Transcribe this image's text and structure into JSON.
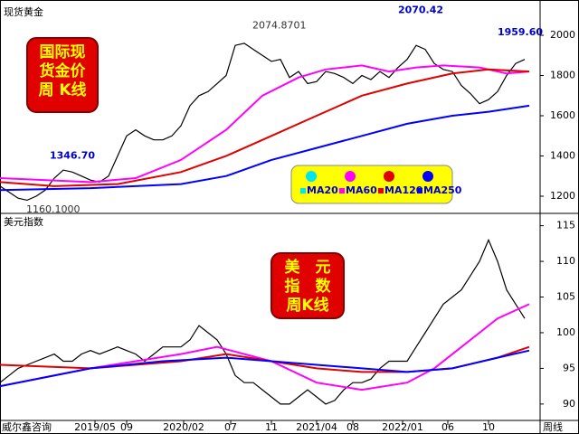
{
  "chart_data": [
    {
      "type": "line",
      "title": "现货黄金",
      "label_box": [
        "国际现",
        "货金价",
        "周 K线"
      ],
      "xlim": [
        0,
        59.7
      ],
      "ylim": [
        1119,
        2153
      ],
      "yticks": [
        1200,
        1400,
        1600,
        1800,
        2000
      ],
      "legend": [
        {
          "name": "MA20",
          "color": "#00e5ee"
        },
        {
          "name": "MA60",
          "color": "#ff00ff"
        },
        {
          "name": "MA120",
          "color": "#e00000"
        },
        {
          "name": "MA250",
          "color": "#0000ff"
        }
      ],
      "annotations": [
        {
          "text": "2074.8701",
          "x": 26.5,
          "y": 2074.87,
          "position": "right",
          "color": "#333333"
        },
        {
          "text": "2070.42",
          "x": 46.5,
          "y": 2070.42,
          "position": "above",
          "color": "#0000cc"
        },
        {
          "text": "1959.60",
          "x": 57.5,
          "y": 1959.6,
          "position": "above",
          "color": "#0000cc"
        },
        {
          "text": "1346.70",
          "x": 8,
          "y": 1346.7,
          "position": "above",
          "color": "#0000cc"
        },
        {
          "text": "1160.1000",
          "x": 1.5,
          "y": 1160.1,
          "position": "right",
          "color": "#333333"
        }
      ],
      "series": [
        {
          "name": "K线",
          "color": "#000000",
          "x": [
            0,
            1,
            2,
            3,
            4,
            5,
            6,
            7,
            8,
            9,
            10,
            11,
            12,
            13,
            14,
            15,
            16,
            17,
            18,
            19,
            20,
            21,
            22,
            23,
            24,
            25,
            26,
            27,
            28,
            29,
            30,
            31,
            32,
            33,
            34,
            35,
            36,
            37,
            38,
            39,
            40,
            41,
            42,
            43,
            44,
            45,
            46,
            47,
            48,
            49,
            50,
            51,
            52,
            53,
            54,
            55,
            56,
            57,
            58
          ],
          "values": [
            1250,
            1220,
            1190,
            1180,
            1200,
            1230,
            1290,
            1330,
            1320,
            1300,
            1280,
            1270,
            1300,
            1400,
            1500,
            1530,
            1500,
            1480,
            1480,
            1500,
            1550,
            1650,
            1700,
            1720,
            1760,
            1800,
            1950,
            1960,
            1930,
            1900,
            1870,
            1880,
            1790,
            1820,
            1760,
            1770,
            1820,
            1810,
            1790,
            1760,
            1800,
            1780,
            1820,
            1790,
            1840,
            1880,
            1950,
            1930,
            1860,
            1830,
            1820,
            1750,
            1710,
            1660,
            1680,
            1720,
            1800,
            1860,
            1880
          ]
        },
        {
          "name": "MA60",
          "color": "#ff00ff",
          "x": [
            0,
            10,
            15,
            20,
            25,
            29,
            33,
            36,
            40,
            43,
            46,
            49,
            53,
            56,
            58.5
          ],
          "values": [
            1290,
            1270,
            1290,
            1380,
            1530,
            1700,
            1790,
            1830,
            1850,
            1820,
            1840,
            1850,
            1840,
            1810,
            1820
          ]
        },
        {
          "name": "MA120",
          "color": "#e00000",
          "x": [
            0,
            6,
            13,
            20,
            25,
            30,
            35,
            40,
            45,
            50,
            54,
            58.5
          ],
          "values": [
            1270,
            1250,
            1260,
            1320,
            1400,
            1500,
            1600,
            1700,
            1760,
            1810,
            1830,
            1820
          ]
        },
        {
          "name": "MA250",
          "color": "#0000ff",
          "x": [
            0,
            10,
            20,
            25,
            30,
            35,
            40,
            45,
            50,
            54,
            58.5
          ],
          "values": [
            1230,
            1240,
            1260,
            1300,
            1380,
            1440,
            1500,
            1560,
            1600,
            1620,
            1650
          ]
        }
      ]
    },
    {
      "type": "line",
      "title": "美元指数",
      "label_box": [
        "美　元",
        "指　数",
        "周K线"
      ],
      "xlim": [
        0,
        59.7
      ],
      "ylim": [
        87.7,
        116.6
      ],
      "yticks": [
        90,
        95,
        100,
        105,
        110,
        115
      ],
      "xticks": [
        {
          "value": 10.5,
          "label": "2019/05"
        },
        {
          "value": 14,
          "label": "09"
        },
        {
          "value": 20.3,
          "label": "2020/02"
        },
        {
          "value": 25.5,
          "label": "07"
        },
        {
          "value": 30,
          "label": "11"
        },
        {
          "value": 35,
          "label": "2021/04"
        },
        {
          "value": 39,
          "label": "08"
        },
        {
          "value": 44.5,
          "label": "2022/01"
        },
        {
          "value": 49.5,
          "label": "06"
        },
        {
          "value": 54,
          "label": "10"
        }
      ],
      "source": "威尔鑫咨询",
      "period": "周线",
      "series": [
        {
          "name": "K线",
          "color": "#000000",
          "x": [
            0,
            1,
            2,
            3,
            4,
            5,
            6,
            7,
            8,
            9,
            10,
            11,
            12,
            13,
            14,
            15,
            16,
            17,
            18,
            19,
            20,
            21,
            22,
            23,
            24,
            25,
            26,
            27,
            28,
            29,
            30,
            31,
            32,
            33,
            34,
            35,
            36,
            37,
            38,
            39,
            40,
            41,
            42,
            43,
            44,
            45,
            46,
            47,
            48,
            49,
            50,
            51,
            52,
            53,
            54,
            55,
            56,
            57,
            58
          ],
          "values": [
            93,
            94,
            95,
            95.5,
            96,
            96.5,
            97,
            96,
            96,
            97,
            97.5,
            97,
            97.5,
            98,
            97.5,
            97,
            96,
            97,
            98,
            98,
            98,
            99,
            101,
            100,
            99,
            97,
            94,
            93,
            93,
            92,
            91,
            90,
            90,
            91,
            92,
            91,
            90,
            90.5,
            92,
            93,
            93,
            93.5,
            95,
            96,
            96,
            96,
            98,
            100,
            102,
            104,
            105,
            106,
            108,
            110,
            113,
            110,
            106,
            104,
            102
          ]
        },
        {
          "name": "MA60",
          "color": "#ff00ff",
          "x": [
            0,
            10,
            20,
            24,
            30,
            35,
            40,
            45,
            48,
            52,
            55,
            58.5
          ],
          "values": [
            92.5,
            95,
            97,
            98,
            96,
            93,
            92,
            93,
            95,
            99,
            102,
            104
          ]
        },
        {
          "name": "MA120",
          "color": "#e00000",
          "x": [
            0,
            10,
            20,
            25,
            30,
            35,
            40,
            45,
            50,
            55,
            58.5
          ],
          "values": [
            95.5,
            95,
            96,
            97,
            96,
            95,
            94.5,
            94.5,
            95,
            96.5,
            98
          ]
        },
        {
          "name": "MA250",
          "color": "#0000ff",
          "x": [
            0,
            10,
            18,
            25,
            30,
            35,
            40,
            45,
            50,
            55,
            58.5
          ],
          "values": [
            92.5,
            95,
            96,
            96.5,
            96,
            95.5,
            95,
            94.5,
            95,
            96.5,
            97.5
          ]
        }
      ]
    }
  ]
}
